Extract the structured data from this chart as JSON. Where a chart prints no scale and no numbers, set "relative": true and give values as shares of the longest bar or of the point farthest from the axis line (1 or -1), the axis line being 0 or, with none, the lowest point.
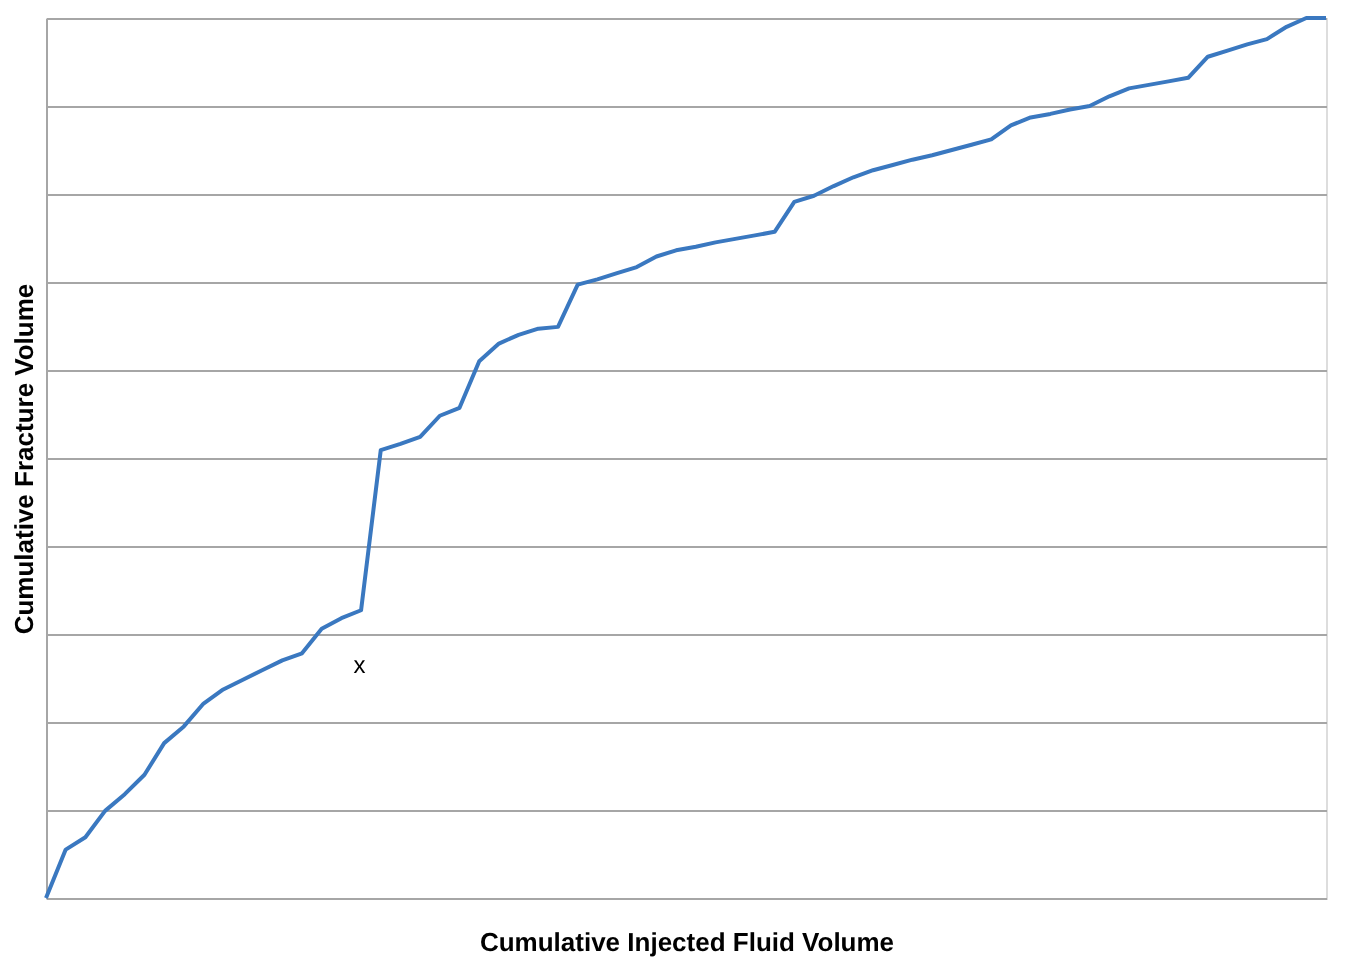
{
  "chart_data": {
    "type": "line",
    "relative": true,
    "xlabel": "Cumulative Injected Fluid Volume",
    "ylabel": "Cumulative Fracture Volume",
    "grid": "y",
    "marker": "none",
    "line_style": "solid",
    "annotations": [
      "x"
    ],
    "categories": [
      null,
      null,
      null,
      null,
      null,
      null,
      null,
      null,
      null,
      null,
      null,
      null,
      null,
      null,
      null,
      null,
      null,
      null,
      null,
      null,
      null,
      null,
      null,
      null,
      null,
      null,
      null,
      null,
      null,
      null,
      null,
      null,
      null,
      null,
      null,
      null,
      null,
      null,
      null,
      null,
      null,
      null,
      null,
      null,
      null,
      null,
      null,
      null,
      null,
      null,
      null,
      null,
      null,
      null,
      null,
      null,
      null,
      null,
      null,
      null,
      null,
      null,
      null,
      null,
      null,
      null
    ],
    "series": [
      {
        "color": "#3a78c0",
        "values": [
          0,
          0.055,
          0.069,
          0.099,
          0.118,
          0.14,
          0.176,
          0.195,
          0.221,
          0.237,
          0.248,
          0.259,
          0.27,
          0.278,
          0.306,
          0.318,
          0.327,
          0.509,
          0.516,
          0.524,
          0.548,
          0.557,
          0.61,
          0.63,
          0.64,
          0.647,
          0.649,
          0.697,
          0.703,
          0.71,
          0.717,
          0.729,
          0.736,
          0.74,
          0.745,
          0.749,
          0.753,
          0.757,
          0.791,
          0.798,
          0.809,
          0.819,
          0.827,
          0.833,
          0.839,
          0.844,
          0.85,
          0.856,
          0.862,
          0.878,
          0.887,
          0.891,
          0.896,
          0.9,
          0.911,
          0.92,
          0.924,
          0.928,
          0.932,
          0.956,
          0.963,
          0.97,
          0.976,
          0.99,
          1,
          1
        ]
      }
    ]
  }
}
